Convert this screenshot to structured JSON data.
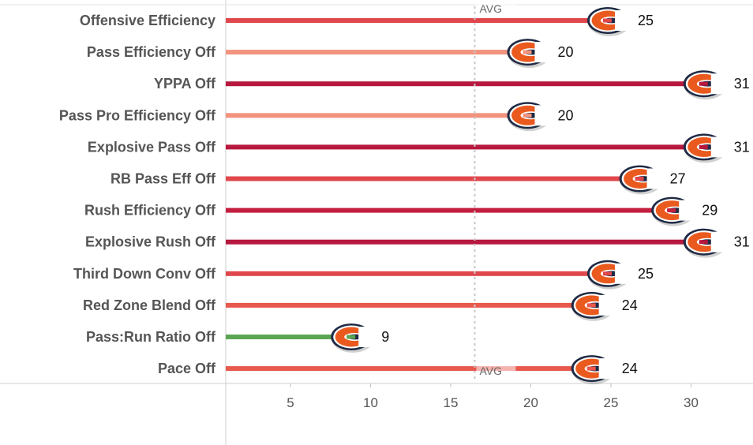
{
  "chart_data": {
    "type": "bar",
    "categories": [
      "Offensive Efficiency",
      "Pass Efficiency Off",
      "YPPA Off",
      "Pass Pro Efficiency Off",
      "Explosive Pass Off",
      "RB Pass Eff Off",
      "Rush Efficiency Off",
      "Explosive Rush Off",
      "Third Down Conv Off",
      "Red Zone Blend Off",
      "Pass:Run Ratio Off",
      "Pace Off"
    ],
    "values": [
      25,
      20,
      31,
      20,
      31,
      27,
      29,
      31,
      25,
      24,
      9,
      24
    ],
    "bar_colors": [
      "#e0474c",
      "#f2937d",
      "#b7183e",
      "#f2937d",
      "#b7183e",
      "#e0474c",
      "#c41e3e",
      "#b7183e",
      "#e0474c",
      "#e8584c",
      "#5aa653",
      "#e8584c"
    ],
    "xticks": [
      5,
      10,
      15,
      20,
      25,
      30
    ],
    "xlim": [
      0.5,
      34
    ],
    "reference_line": {
      "label": "AVG",
      "value": 16.5
    },
    "marker_icon": "bears-c-logo-icon",
    "title": "",
    "xlabel": "",
    "ylabel": ""
  }
}
